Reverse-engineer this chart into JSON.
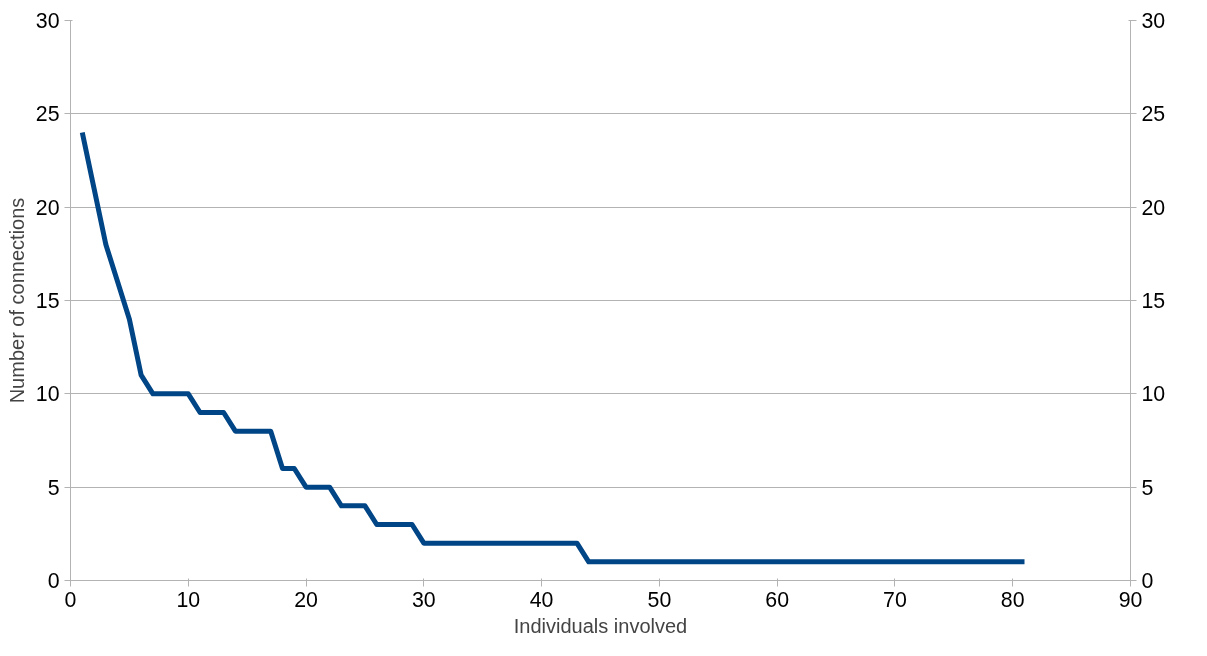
{
  "chart_data": {
    "type": "line",
    "xlabel": "Individuals involved",
    "ylabel": "Number of connections",
    "x": [
      1,
      2,
      3,
      4,
      5,
      6,
      7,
      8,
      9,
      10,
      11,
      12,
      13,
      14,
      15,
      16,
      17,
      18,
      19,
      20,
      21,
      22,
      23,
      24,
      25,
      26,
      27,
      28,
      29,
      30,
      31,
      32,
      33,
      34,
      35,
      36,
      37,
      38,
      39,
      40,
      41,
      42,
      43,
      44,
      45,
      46,
      47,
      48,
      49,
      50,
      51,
      52,
      53,
      54,
      55,
      56,
      57,
      58,
      59,
      60,
      61,
      62,
      63,
      64,
      65,
      66,
      67,
      68,
      69,
      70,
      71,
      72,
      73,
      74,
      75,
      76,
      77,
      78,
      79,
      80,
      81
    ],
    "series": [
      {
        "color": "#004586",
        "values": [
          24,
          21,
          18,
          16,
          14,
          11,
          10,
          10,
          10,
          10,
          9,
          9,
          9,
          8,
          8,
          8,
          8,
          6,
          6,
          5,
          5,
          5,
          4,
          4,
          4,
          3,
          3,
          3,
          3,
          2,
          2,
          2,
          2,
          2,
          2,
          2,
          2,
          2,
          2,
          2,
          2,
          2,
          2,
          1,
          1,
          1,
          1,
          1,
          1,
          1,
          1,
          1,
          1,
          1,
          1,
          1,
          1,
          1,
          1,
          1,
          1,
          1,
          1,
          1,
          1,
          1,
          1,
          1,
          1,
          1,
          1,
          1,
          1,
          1,
          1,
          1,
          1,
          1,
          1,
          1,
          1
        ]
      }
    ],
    "xlim": [
      0,
      90
    ],
    "xticks": [
      0,
      10,
      20,
      30,
      40,
      50,
      60,
      70,
      80,
      90
    ],
    "ylim": [
      0,
      30
    ],
    "yticks": [
      0,
      5,
      10,
      15,
      20,
      25,
      30
    ],
    "y2lim": [
      0,
      30
    ],
    "y2ticks": [
      0,
      5,
      10,
      15,
      20,
      25,
      30
    ],
    "grid": "y",
    "marker": "none",
    "line_style": "solid"
  }
}
